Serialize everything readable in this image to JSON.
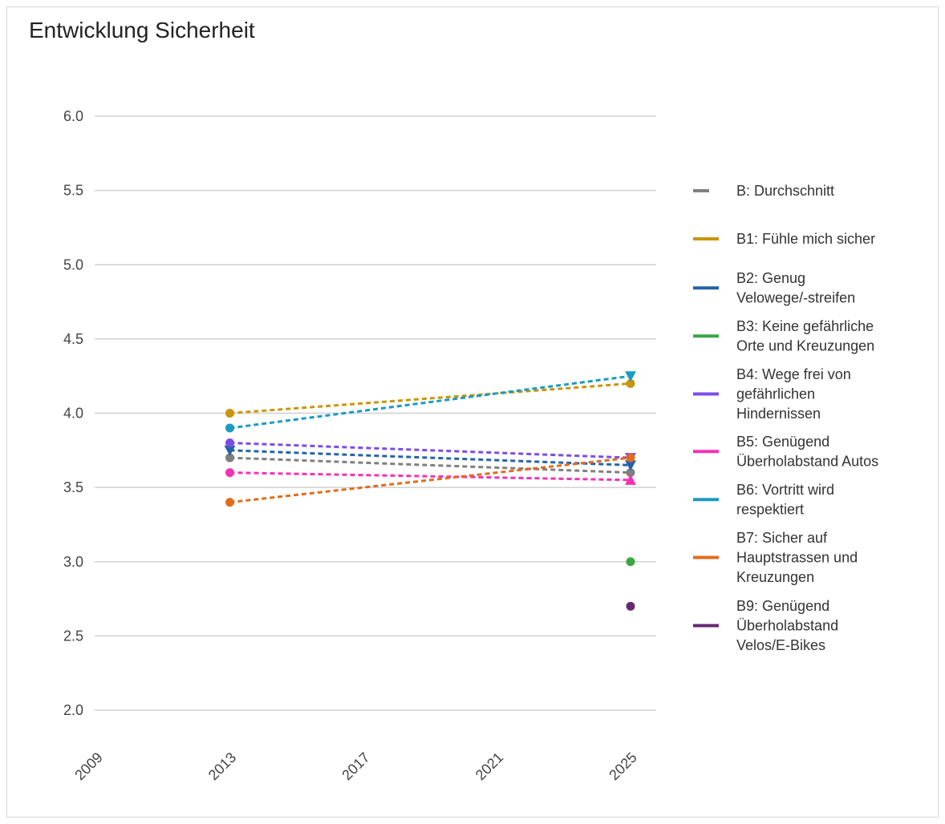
{
  "chart_data": {
    "type": "line",
    "title": "Entwicklung Sicherheit",
    "xlabel": "",
    "ylabel": "",
    "ylim": [
      2.0,
      6.0
    ],
    "xlim": [
      2009,
      2025
    ],
    "x_ticks": [
      "2009",
      "2013",
      "2017",
      "2021",
      "2025"
    ],
    "y_ticks": [
      "2.0",
      "2.5",
      "3.0",
      "3.5",
      "4.0",
      "4.5",
      "5.0",
      "5.5",
      "6.0"
    ],
    "grid": "horizontal",
    "legend_position": "right",
    "series": [
      {
        "name": "B: Durchschnitt",
        "color": "#7f7f7f",
        "points": [
          [
            2013,
            3.7
          ],
          [
            2025,
            3.6
          ]
        ],
        "start_marker": "circle",
        "end_marker": "circle"
      },
      {
        "name": "B1: Fühle mich sicher",
        "color": "#c8960c",
        "points": [
          [
            2013,
            4.0
          ],
          [
            2025,
            4.2
          ]
        ],
        "start_marker": "circle",
        "end_marker": "circle"
      },
      {
        "name": "B2: Genug Velowege/-streifen",
        "color": "#2563a8",
        "points": [
          [
            2013,
            3.75
          ],
          [
            2025,
            3.65
          ]
        ],
        "start_marker": "triangle-down",
        "end_marker": "triangle-down"
      },
      {
        "name": "B3: Keine gefährliche Orte und Kreuzungen",
        "color": "#3aa845",
        "points": [
          [
            2025,
            3.0
          ]
        ],
        "start_marker": "circle",
        "end_marker": "circle"
      },
      {
        "name": "B4: Wege frei von gefährlichen Hindernissen",
        "color": "#7c4ce6",
        "points": [
          [
            2013,
            3.8
          ],
          [
            2025,
            3.7
          ]
        ],
        "start_marker": "circle",
        "end_marker": "triangle-down"
      },
      {
        "name": "B5: Genügend Überholabstand Autos",
        "color": "#f531b5",
        "points": [
          [
            2013,
            3.6
          ],
          [
            2025,
            3.55
          ]
        ],
        "start_marker": "circle",
        "end_marker": "triangle-up"
      },
      {
        "name": "B6: Vortritt wird respektiert",
        "color": "#1a9bc2",
        "points": [
          [
            2013,
            3.9
          ],
          [
            2025,
            4.25
          ]
        ],
        "start_marker": "circle",
        "end_marker": "triangle-down"
      },
      {
        "name": "B7: Sicher auf Hauptstrassen und Kreuzungen",
        "color": "#e06c1c",
        "points": [
          [
            2013,
            3.4
          ],
          [
            2025,
            3.7
          ]
        ],
        "start_marker": "circle",
        "end_marker": "circle"
      },
      {
        "name": "B9: Genügend Überholabstand Velos/E-Bikes",
        "color": "#662a73",
        "points": [
          [
            2025,
            2.7
          ]
        ],
        "start_marker": "circle",
        "end_marker": "circle"
      }
    ],
    "legend": [
      {
        "lines": [
          "B: Durchschnitt"
        ],
        "color": "#7f7f7f"
      },
      {
        "lines": [
          "B1: Fühle mich sicher"
        ],
        "color": "#c8960c"
      },
      {
        "lines": [
          "B2: Genug",
          "Velowege/-streifen"
        ],
        "color": "#2563a8"
      },
      {
        "lines": [
          "B3: Keine gefährliche",
          "Orte und Kreuzungen"
        ],
        "color": "#3aa845"
      },
      {
        "lines": [
          "B4: Wege frei von",
          "gefährlichen",
          "Hindernissen"
        ],
        "color": "#7c4ce6"
      },
      {
        "lines": [
          "B5: Genügend",
          "Überholabstand Autos"
        ],
        "color": "#f531b5"
      },
      {
        "lines": [
          "B6: Vortritt wird",
          "respektiert"
        ],
        "color": "#1a9bc2"
      },
      {
        "lines": [
          "B7: Sicher auf",
          "Hauptstrassen und",
          "Kreuzungen"
        ],
        "color": "#e06c1c"
      },
      {
        "lines": [
          "B9: Genügend",
          "Überholabstand",
          "Velos/E-Bikes"
        ],
        "color": "#662a73"
      }
    ]
  }
}
